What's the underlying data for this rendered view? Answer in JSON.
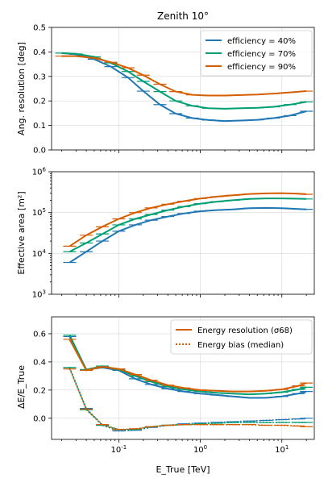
{
  "chart_data": [
    {
      "type": "line",
      "title": "Zenith 10°",
      "ylabel": "Ang. resolution [deg]",
      "xlabel": "",
      "xscale": "log",
      "xlim": [
        0.015,
        25
      ],
      "ylim": [
        0,
        0.5
      ],
      "yticks": [
        0.0,
        0.1,
        0.2,
        0.3,
        0.4,
        0.5
      ],
      "ytick_labels": [
        "0.0",
        "0.1",
        "0.2",
        "0.3",
        "0.4",
        "0.5"
      ],
      "grid": true,
      "legend_position": "top-right",
      "series": [
        {
          "name": "efficiency = 40%",
          "color": "#1f77b4",
          "x": [
            0.02,
            0.03,
            0.05,
            0.08,
            0.13,
            0.2,
            0.32,
            0.5,
            0.8,
            1.26,
            2,
            3.16,
            5,
            7.9,
            12.6,
            20
          ],
          "y": [
            0.395,
            0.39,
            0.37,
            0.34,
            0.295,
            0.24,
            0.185,
            0.148,
            0.13,
            0.122,
            0.118,
            0.12,
            0.123,
            0.13,
            0.14,
            0.158
          ]
        },
        {
          "name": "efficiency = 70%",
          "color": "#009e73",
          "x": [
            0.02,
            0.03,
            0.05,
            0.08,
            0.13,
            0.2,
            0.32,
            0.5,
            0.8,
            1.26,
            2,
            3.16,
            5,
            7.9,
            12.6,
            20
          ],
          "y": [
            0.395,
            0.392,
            0.38,
            0.355,
            0.32,
            0.28,
            0.238,
            0.2,
            0.18,
            0.17,
            0.168,
            0.17,
            0.172,
            0.176,
            0.185,
            0.196
          ]
        },
        {
          "name": "efficiency = 90%",
          "color": "#d55e00",
          "x": [
            0.02,
            0.03,
            0.05,
            0.08,
            0.13,
            0.2,
            0.32,
            0.5,
            0.8,
            1.26,
            2,
            3.16,
            5,
            7.9,
            12.6,
            20
          ],
          "y": [
            0.383,
            0.383,
            0.375,
            0.358,
            0.335,
            0.305,
            0.268,
            0.238,
            0.225,
            0.222,
            0.222,
            0.224,
            0.226,
            0.23,
            0.235,
            0.24
          ]
        }
      ]
    },
    {
      "type": "line",
      "title": "",
      "ylabel": "Effective area [m²]",
      "xlabel": "",
      "xscale": "log",
      "yscale": "log",
      "xlim": [
        0.015,
        25
      ],
      "ylim": [
        1000,
        1000000
      ],
      "yticks": [
        1000,
        10000,
        100000,
        1000000
      ],
      "ytick_labels": [
        "10^3",
        "10^4",
        "10^5",
        "10^6"
      ],
      "grid": true,
      "series": [
        {
          "name": "efficiency = 40%",
          "color": "#1f77b4",
          "x": [
            0.025,
            0.04,
            0.063,
            0.1,
            0.16,
            0.25,
            0.4,
            0.63,
            1.0,
            1.6,
            2.5,
            4.0,
            6.3,
            10,
            16,
            20
          ],
          "y": [
            6000,
            11000,
            20000,
            35000,
            50000,
            65000,
            80000,
            95000,
            108000,
            115000,
            120000,
            128000,
            130000,
            128000,
            122000,
            120000
          ]
        },
        {
          "name": "efficiency = 70%",
          "color": "#009e73",
          "x": [
            0.025,
            0.04,
            0.063,
            0.1,
            0.16,
            0.25,
            0.4,
            0.63,
            1.0,
            1.6,
            2.5,
            4.0,
            6.3,
            10,
            16,
            20
          ],
          "y": [
            11000,
            18000,
            30000,
            50000,
            70000,
            90000,
            115000,
            140000,
            165000,
            185000,
            200000,
            215000,
            222000,
            222000,
            218000,
            215000
          ]
        },
        {
          "name": "efficiency = 90%",
          "color": "#d55e00",
          "x": [
            0.025,
            0.04,
            0.063,
            0.1,
            0.16,
            0.25,
            0.4,
            0.63,
            1.0,
            1.6,
            2.5,
            4.0,
            6.3,
            10,
            16,
            20
          ],
          "y": [
            15000,
            28000,
            45000,
            70000,
            100000,
            130000,
            160000,
            190000,
            220000,
            245000,
            265000,
            285000,
            295000,
            298000,
            290000,
            280000
          ]
        }
      ]
    },
    {
      "type": "line",
      "title": "",
      "ylabel": "ΔE/E_True",
      "xlabel": "E_True [TeV]",
      "xscale": "log",
      "xlim": [
        0.015,
        25
      ],
      "ylim": [
        -0.15,
        0.72
      ],
      "yticks": [
        0.0,
        0.2,
        0.4,
        0.6
      ],
      "ytick_labels": [
        "0.0",
        "0.2",
        "0.4",
        "0.6"
      ],
      "xticks": [
        0.1,
        1,
        10
      ],
      "xtick_labels": [
        "10^-1",
        "10^0",
        "10^1"
      ],
      "grid": true,
      "legend_position": "top-right",
      "legend": [
        {
          "label": "Energy resolution (σ68)",
          "style": "solid",
          "color": "#d55e00"
        },
        {
          "label": "Energy bias (median)",
          "style": "dotted",
          "color": "#d55e00"
        }
      ],
      "series": [
        {
          "name": "",
          "kind": "resolution",
          "color": "#1f77b4",
          "x": [
            0.025,
            0.04,
            0.063,
            0.1,
            0.16,
            0.25,
            0.4,
            0.63,
            1.0,
            1.6,
            2.5,
            4.0,
            6.3,
            10,
            16,
            20
          ],
          "y": [
            0.58,
            0.345,
            0.36,
            0.34,
            0.28,
            0.24,
            0.21,
            0.19,
            0.175,
            0.165,
            0.155,
            0.145,
            0.145,
            0.155,
            0.175,
            0.19
          ]
        },
        {
          "name": "",
          "kind": "resolution",
          "color": "#009e73",
          "x": [
            0.025,
            0.04,
            0.063,
            0.1,
            0.16,
            0.25,
            0.4,
            0.63,
            1.0,
            1.6,
            2.5,
            4.0,
            6.3,
            10,
            16,
            20
          ],
          "y": [
            0.59,
            0.345,
            0.37,
            0.345,
            0.3,
            0.26,
            0.225,
            0.205,
            0.19,
            0.18,
            0.175,
            0.17,
            0.175,
            0.185,
            0.205,
            0.22
          ]
        },
        {
          "name": "",
          "kind": "resolution",
          "color": "#d55e00",
          "x": [
            0.025,
            0.04,
            0.063,
            0.1,
            0.16,
            0.25,
            0.4,
            0.63,
            1.0,
            1.6,
            2.5,
            4.0,
            6.3,
            10,
            16,
            20
          ],
          "y": [
            0.56,
            0.34,
            0.365,
            0.35,
            0.31,
            0.27,
            0.235,
            0.215,
            0.2,
            0.195,
            0.19,
            0.19,
            0.195,
            0.205,
            0.23,
            0.25
          ]
        },
        {
          "name": "",
          "kind": "bias",
          "color": "#1f77b4",
          "x": [
            0.025,
            0.04,
            0.063,
            0.1,
            0.16,
            0.25,
            0.4,
            0.63,
            1.0,
            1.6,
            2.5,
            4.0,
            6.3,
            10,
            16,
            20
          ],
          "y": [
            0.36,
            0.07,
            -0.05,
            -0.09,
            -0.085,
            -0.065,
            -0.05,
            -0.04,
            -0.035,
            -0.03,
            -0.025,
            -0.02,
            -0.015,
            -0.01,
            -0.005,
            0.0
          ]
        },
        {
          "name": "",
          "kind": "bias",
          "color": "#009e73",
          "x": [
            0.025,
            0.04,
            0.063,
            0.1,
            0.16,
            0.25,
            0.4,
            0.63,
            1.0,
            1.6,
            2.5,
            4.0,
            6.3,
            10,
            16,
            20
          ],
          "y": [
            0.36,
            0.06,
            -0.05,
            -0.08,
            -0.08,
            -0.06,
            -0.05,
            -0.045,
            -0.04,
            -0.035,
            -0.03,
            -0.03,
            -0.03,
            -0.03,
            -0.03,
            -0.03
          ]
        },
        {
          "name": "",
          "kind": "bias",
          "color": "#d55e00",
          "x": [
            0.025,
            0.04,
            0.063,
            0.1,
            0.16,
            0.25,
            0.4,
            0.63,
            1.0,
            1.6,
            2.5,
            4.0,
            6.3,
            10,
            16,
            20
          ],
          "y": [
            0.35,
            0.065,
            -0.045,
            -0.08,
            -0.075,
            -0.06,
            -0.05,
            -0.045,
            -0.045,
            -0.045,
            -0.045,
            -0.045,
            -0.05,
            -0.05,
            -0.055,
            -0.06
          ]
        }
      ]
    }
  ]
}
